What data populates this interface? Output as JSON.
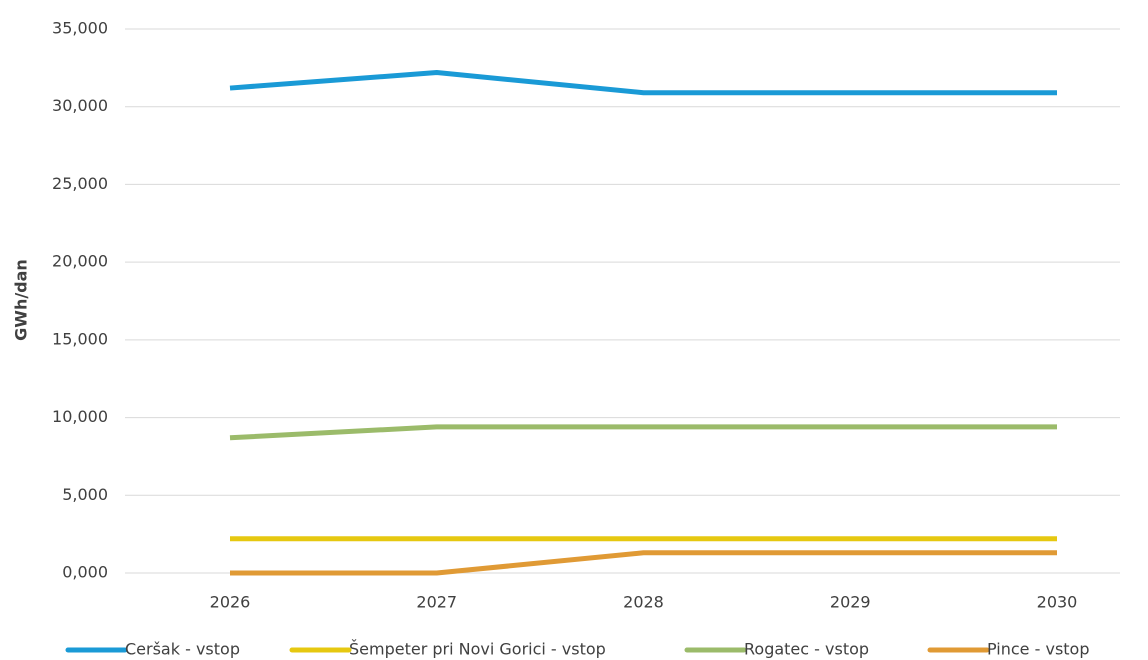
{
  "chart_data": {
    "type": "line",
    "y_label": "GWh/dan",
    "categories": [
      "2026",
      "2027",
      "2028",
      "2029",
      "2030"
    ],
    "series": [
      {
        "name": "Ceršak - vstop",
        "color": "#1a9ad6",
        "values": [
          31.2,
          32.2,
          30.9,
          30.9,
          30.9
        ]
      },
      {
        "name": "Šempeter pri Novi Gorici - vstop",
        "color": "#e6c810",
        "values": [
          2.2,
          2.2,
          2.2,
          2.2,
          2.2
        ]
      },
      {
        "name": "Rogatec - vstop",
        "color": "#9bbb6a",
        "values": [
          8.7,
          9.4,
          9.4,
          9.4,
          9.4
        ]
      },
      {
        "name": "Pince - vstop",
        "color": "#e09a35",
        "values": [
          0,
          0,
          1.3,
          1.3,
          1.3
        ]
      }
    ],
    "ylim": [
      0,
      35
    ],
    "yticks": [
      {
        "value": 0,
        "label": "0,000"
      },
      {
        "value": 5,
        "label": "5,000"
      },
      {
        "value": 10,
        "label": "10,000"
      },
      {
        "value": 15,
        "label": "15,000"
      },
      {
        "value": 20,
        "label": "20,000"
      },
      {
        "value": 25,
        "label": "25,000"
      },
      {
        "value": 30,
        "label": "30,000"
      },
      {
        "value": 35,
        "label": "35,000"
      }
    ],
    "grid": true,
    "legend": "bottom"
  }
}
